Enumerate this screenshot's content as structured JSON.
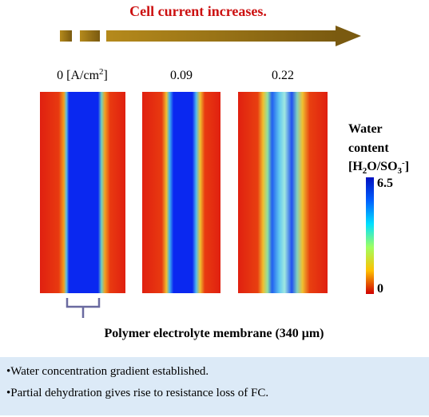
{
  "header": {
    "title": "Cell current increases."
  },
  "current_labels": {
    "first": {
      "text": "0 [A/cm",
      "superscript": "2",
      "close": "]"
    },
    "second": "0.09",
    "third": "0.22"
  },
  "colorbar": {
    "title_lines": [
      "Water",
      "content"
    ],
    "unit": {
      "open": "[H",
      "sub1": "2",
      "mid": "O/SO",
      "sub2": "3",
      "sup": "-",
      "close": "]"
    },
    "max_label": "6.5",
    "min_label": "0"
  },
  "caption": "Polymer electrolyte membrane (340 μm)",
  "notes": [
    "•Water concentration gradient established.",
    "•Partial dehydration gives rise to resistance loss of FC."
  ]
}
